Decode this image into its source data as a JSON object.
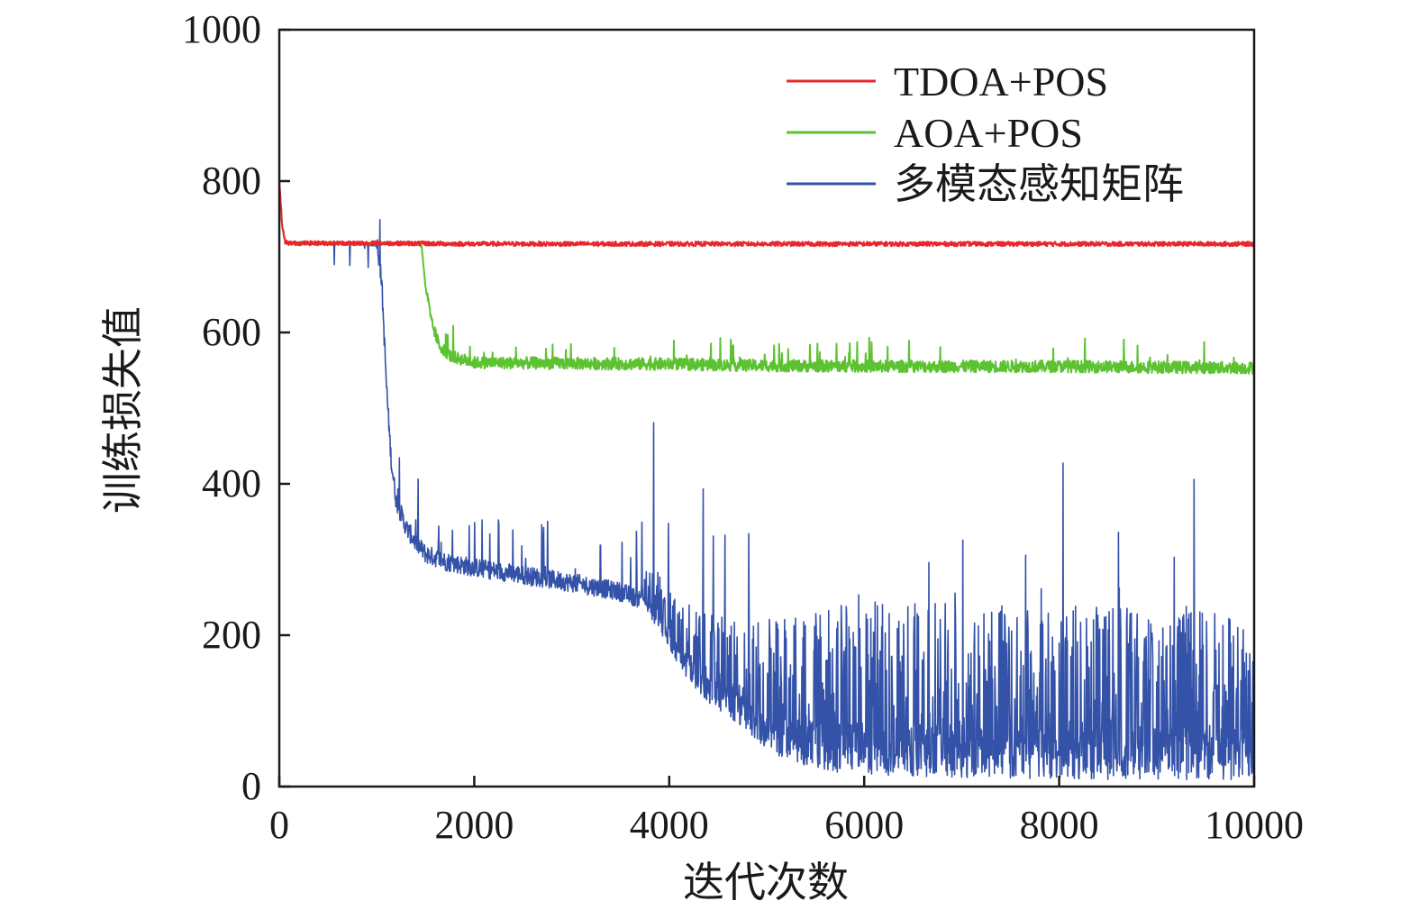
{
  "chart_data": {
    "type": "line",
    "title": "",
    "xlabel": "迭代次数",
    "ylabel": "训练损失值",
    "xlim": [
      0,
      10000
    ],
    "ylim": [
      0,
      1000
    ],
    "xticks": [
      0,
      2000,
      4000,
      6000,
      8000,
      10000
    ],
    "yticks": [
      0,
      200,
      400,
      600,
      800,
      1000
    ],
    "grid": false,
    "legend_position": "top-right",
    "series": [
      {
        "name": "TDOA+POS",
        "color": "#e8262b",
        "x": [
          0,
          30,
          60,
          100,
          500,
          1000,
          2000,
          3000,
          4000,
          5000,
          6000,
          7000,
          8000,
          9000,
          10000
        ],
        "values": [
          800,
          740,
          720,
          718,
          718,
          718,
          717,
          717,
          717,
          717,
          717,
          717,
          717,
          717,
          717
        ]
      },
      {
        "name": "AOA+POS",
        "color": "#5dc232",
        "x": [
          0,
          30,
          60,
          100,
          500,
          1000,
          1400,
          1460,
          1500,
          1560,
          1640,
          1760,
          2000,
          3000,
          4000,
          5000,
          6000,
          7000,
          8000,
          9000,
          10000
        ],
        "values": [
          800,
          740,
          720,
          718,
          718,
          718,
          718,
          715,
          660,
          610,
          580,
          565,
          557,
          556,
          555,
          553,
          552,
          552,
          552,
          551,
          550
        ]
      },
      {
        "name": "多模态感知矩阵",
        "color": "#3352a8",
        "x": [
          0,
          30,
          60,
          100,
          500,
          1000,
          1050,
          1100,
          1150,
          1200,
          1300,
          1400,
          1500,
          1700,
          2000,
          2500,
          3000,
          3500,
          3700,
          3800,
          3900,
          4000,
          4100,
          4200,
          4400,
          4600,
          4800,
          5000,
          5200,
          5500,
          6000,
          7000,
          8000,
          9000,
          10000
        ],
        "values": [
          800,
          740,
          720,
          718,
          718,
          716,
          660,
          520,
          420,
          370,
          335,
          315,
          300,
          290,
          282,
          272,
          262,
          250,
          240,
          225,
          205,
          180,
          160,
          140,
          110,
          90,
          70,
          50,
          35,
          22,
          15,
          12,
          10,
          9,
          8
        ]
      }
    ]
  }
}
